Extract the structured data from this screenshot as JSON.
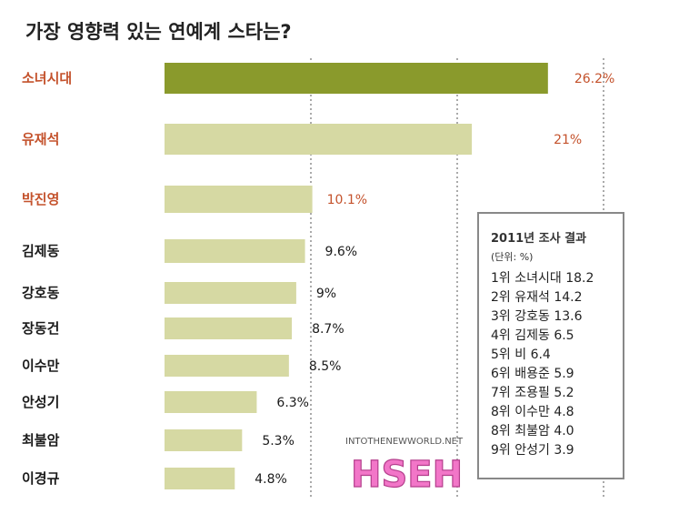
{
  "chart_data": {
    "type": "bar",
    "orientation": "horizontal",
    "title": "가장 영향력 있는 연예계 스타는?",
    "categories": [
      "소녀시대",
      "유재석",
      "박진영",
      "김제동",
      "강호동",
      "장동건",
      "이수만",
      "안성기",
      "최불암",
      "이경규"
    ],
    "values": [
      26.2,
      21,
      10.1,
      9.6,
      9,
      8.7,
      8.5,
      6.3,
      5.3,
      4.8
    ],
    "value_labels": [
      "26.2%",
      "21%",
      "10.1%",
      "9.6%",
      "9%",
      "8.7%",
      "8.5%",
      "6.3%",
      "5.3%",
      "4.8%"
    ],
    "xlim": [
      0,
      30
    ],
    "grid": true,
    "highlighted_count": 3,
    "colors": {
      "top_bar": "#8a9a2c",
      "bar": "#d6d9a3",
      "highlight_label": "#c4522c",
      "label": "#1a1a1a",
      "grid": "#555555"
    }
  },
  "legend_box": {
    "title": "2011년 조사 결과",
    "unit": "(단위: %)",
    "placement": "bottom-right",
    "items": [
      "1위 소녀시대 18.2",
      "2위 유재석 14.2",
      "3위 강호동 13.6",
      "4위 김제동 6.5",
      "5위 비 6.4",
      "6위 배용준 5.9",
      "7위 조용필 5.2",
      "8위 이수만 4.8",
      "8위 최불암 4.0",
      "9위 안성기 3.9"
    ]
  },
  "watermark": {
    "site": "INTOTHENEWWORLD.NET",
    "logo": "HSEH"
  }
}
